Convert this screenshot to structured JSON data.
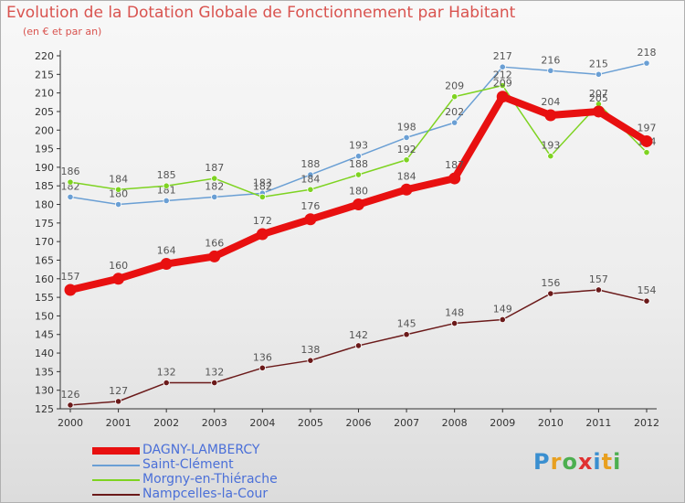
{
  "header": {
    "title": "Evolution de la Dotation Globale de Fonctionnement par Habitant",
    "subtitle": "(en € et par an)"
  },
  "brand": {
    "letters": [
      "P",
      "r",
      "o",
      "x",
      "i",
      "t",
      "i"
    ],
    "colors": [
      "#3a8fd0",
      "#e8a020",
      "#4caf50",
      "#e03030",
      "#3a8fd0",
      "#e8a020",
      "#4caf50"
    ]
  },
  "chart_data": {
    "type": "line",
    "title": "Evolution de la Dotation Globale de Fonctionnement par Habitant",
    "subtitle": "(en € et par an)",
    "xlabel": "",
    "ylabel": "",
    "x": [
      "2000",
      "2001",
      "2002",
      "2003",
      "2004",
      "2005",
      "2006",
      "2007",
      "2008",
      "2009",
      "2010",
      "2011",
      "2012"
    ],
    "ylim": [
      125,
      220
    ],
    "yticks": [
      125,
      130,
      135,
      140,
      145,
      150,
      155,
      160,
      165,
      170,
      175,
      180,
      185,
      190,
      195,
      200,
      205,
      210,
      215,
      220
    ],
    "grid": false,
    "series": [
      {
        "name": "DAGNY-LAMBERCY",
        "color": "#e81010",
        "emphasis": true,
        "values": [
          157,
          160,
          164,
          166,
          172,
          176,
          180,
          184,
          187,
          209,
          204,
          205,
          197
        ]
      },
      {
        "name": "Saint-Clément",
        "color": "#6a9fd4",
        "emphasis": false,
        "values": [
          182,
          180,
          181,
          182,
          183,
          188,
          193,
          198,
          202,
          217,
          216,
          215,
          218
        ]
      },
      {
        "name": "Morgny-en-Thiérache",
        "color": "#7ed321",
        "emphasis": false,
        "values": [
          186,
          184,
          185,
          187,
          182,
          184,
          188,
          192,
          209,
          212,
          193,
          207,
          194
        ]
      },
      {
        "name": "Nampcelles-la-Cour",
        "color": "#6b1a1a",
        "emphasis": false,
        "values": [
          126,
          127,
          132,
          132,
          136,
          138,
          142,
          145,
          148,
          149,
          156,
          157,
          154
        ]
      }
    ]
  }
}
